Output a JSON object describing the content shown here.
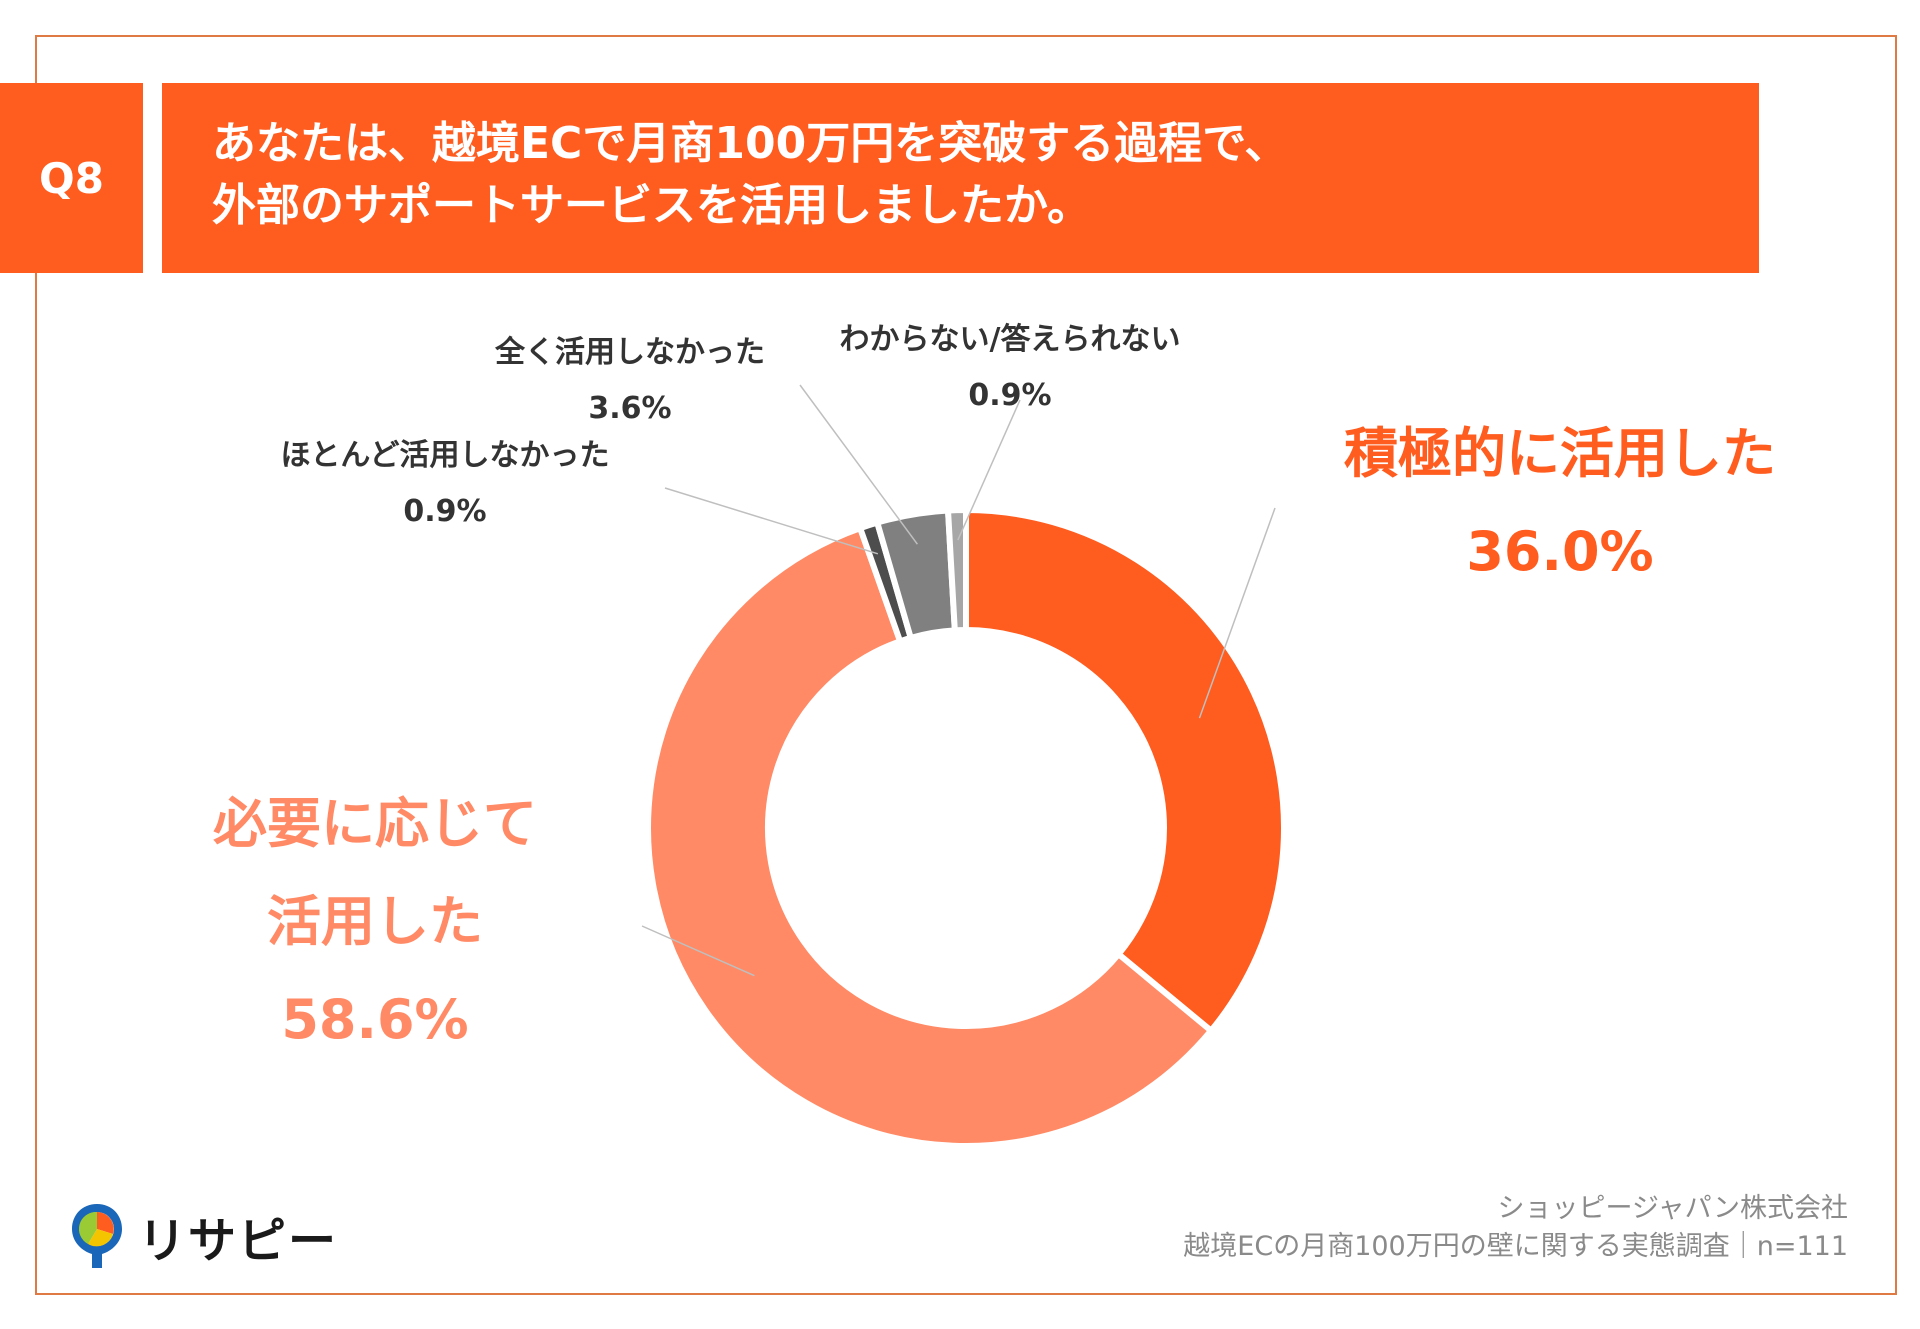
{
  "header": {
    "badge": "Q8",
    "question_line1": "あなたは、越境ECで月商100万円を突破する過程で、",
    "question_line2": "外部のサポートサービスを活用しましたか。"
  },
  "colors": {
    "accent": "#ff5c1f",
    "frame": "#e07a45",
    "light_slice": "#ff8a65",
    "gray_dark": "#4d4d4d",
    "gray_mid": "#808080",
    "gray_light": "#a6a6a6"
  },
  "chart_data": {
    "type": "pie",
    "donut": true,
    "slices": [
      {
        "name": "積極的に活用した",
        "value": 36.0,
        "label": "36.0%",
        "color": "#ff5c1f"
      },
      {
        "name": "必要に応じて活用した",
        "name_line1": "必要に応じて",
        "name_line2": "活用した",
        "value": 58.6,
        "label": "58.6%",
        "color": "#ff8a65"
      },
      {
        "name": "ほとんど活用しなかった",
        "value": 0.9,
        "label": "0.9%",
        "color": "#4d4d4d"
      },
      {
        "name": "全く活用しなかった",
        "value": 3.6,
        "label": "3.6%",
        "color": "#808080"
      },
      {
        "name": "わからない/答えられない",
        "value": 0.9,
        "label": "0.9%",
        "color": "#a6a6a6"
      }
    ]
  },
  "footer": {
    "company": "ショッピージャパン株式会社",
    "survey": "越境ECの月商100万円の壁に関する実態調査｜n=111"
  },
  "logo": {
    "text": "リサピー"
  }
}
